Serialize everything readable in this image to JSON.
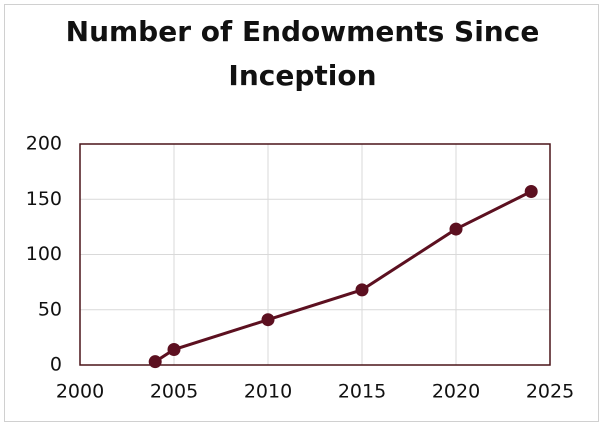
{
  "chart_data": {
    "type": "line",
    "title": "Number of Endowments Since Inception",
    "x": [
      2004,
      2005,
      2010,
      2015,
      2020,
      2024
    ],
    "series": [
      {
        "name": "Endowments",
        "color": "#5c1020",
        "values": [
          3,
          14,
          41,
          68,
          123,
          157
        ]
      }
    ],
    "xlim": [
      2000,
      2025
    ],
    "xticks": [
      2000,
      2005,
      2010,
      2015,
      2020,
      2025
    ],
    "ylim": [
      0,
      200
    ],
    "yticks": [
      0,
      50,
      100,
      150,
      200
    ],
    "grid": true
  }
}
